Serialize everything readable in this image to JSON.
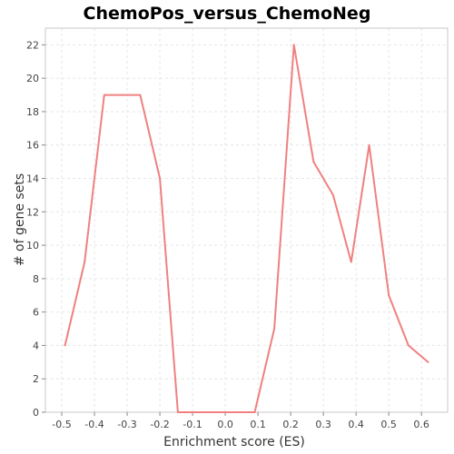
{
  "chart_data": {
    "type": "line",
    "title": "ChemoPos_versus_ChemoNeg",
    "xlabel": "Enrichment score (ES)",
    "ylabel": "# of gene sets",
    "xlim": [
      -0.55,
      0.68
    ],
    "ylim": [
      0,
      23
    ],
    "xticks": [
      "-0.5",
      "-0.4",
      "-0.3",
      "-0.2",
      "-0.1",
      "0.0",
      "0.1",
      "0.2",
      "0.3",
      "0.4",
      "0.5",
      "0.6"
    ],
    "yticks": [
      "0",
      "2",
      "4",
      "6",
      "8",
      "10",
      "12",
      "14",
      "16",
      "18",
      "20",
      "22"
    ],
    "grid": true,
    "series": [
      {
        "color": "#f08080",
        "x": [
          -0.49,
          -0.43,
          -0.37,
          -0.315,
          -0.26,
          -0.2,
          -0.145,
          -0.09,
          -0.035,
          0.015,
          0.09,
          0.15,
          0.21,
          0.27,
          0.33,
          0.385,
          0.44,
          0.5,
          0.56,
          0.62
        ],
        "y": [
          4,
          9,
          19,
          19,
          19,
          14,
          0,
          0,
          0,
          0,
          0,
          5,
          22,
          15,
          13,
          9,
          16,
          7,
          4,
          3
        ]
      }
    ]
  }
}
